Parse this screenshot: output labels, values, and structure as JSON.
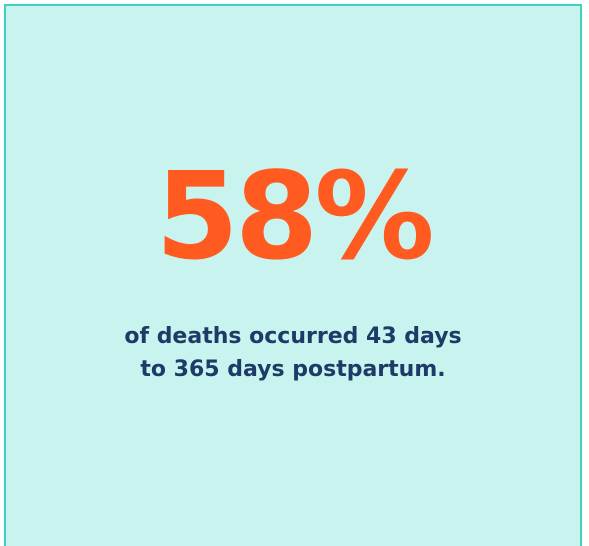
{
  "stat": {
    "value": "58%",
    "caption_line1": "of deaths occurred 43 days",
    "caption_line2": "to 365 days postpartum."
  },
  "colors": {
    "background": "#c9f3ee",
    "border": "#3fd3bf",
    "stat": "#ff5a1f",
    "caption": "#1e3a66"
  }
}
